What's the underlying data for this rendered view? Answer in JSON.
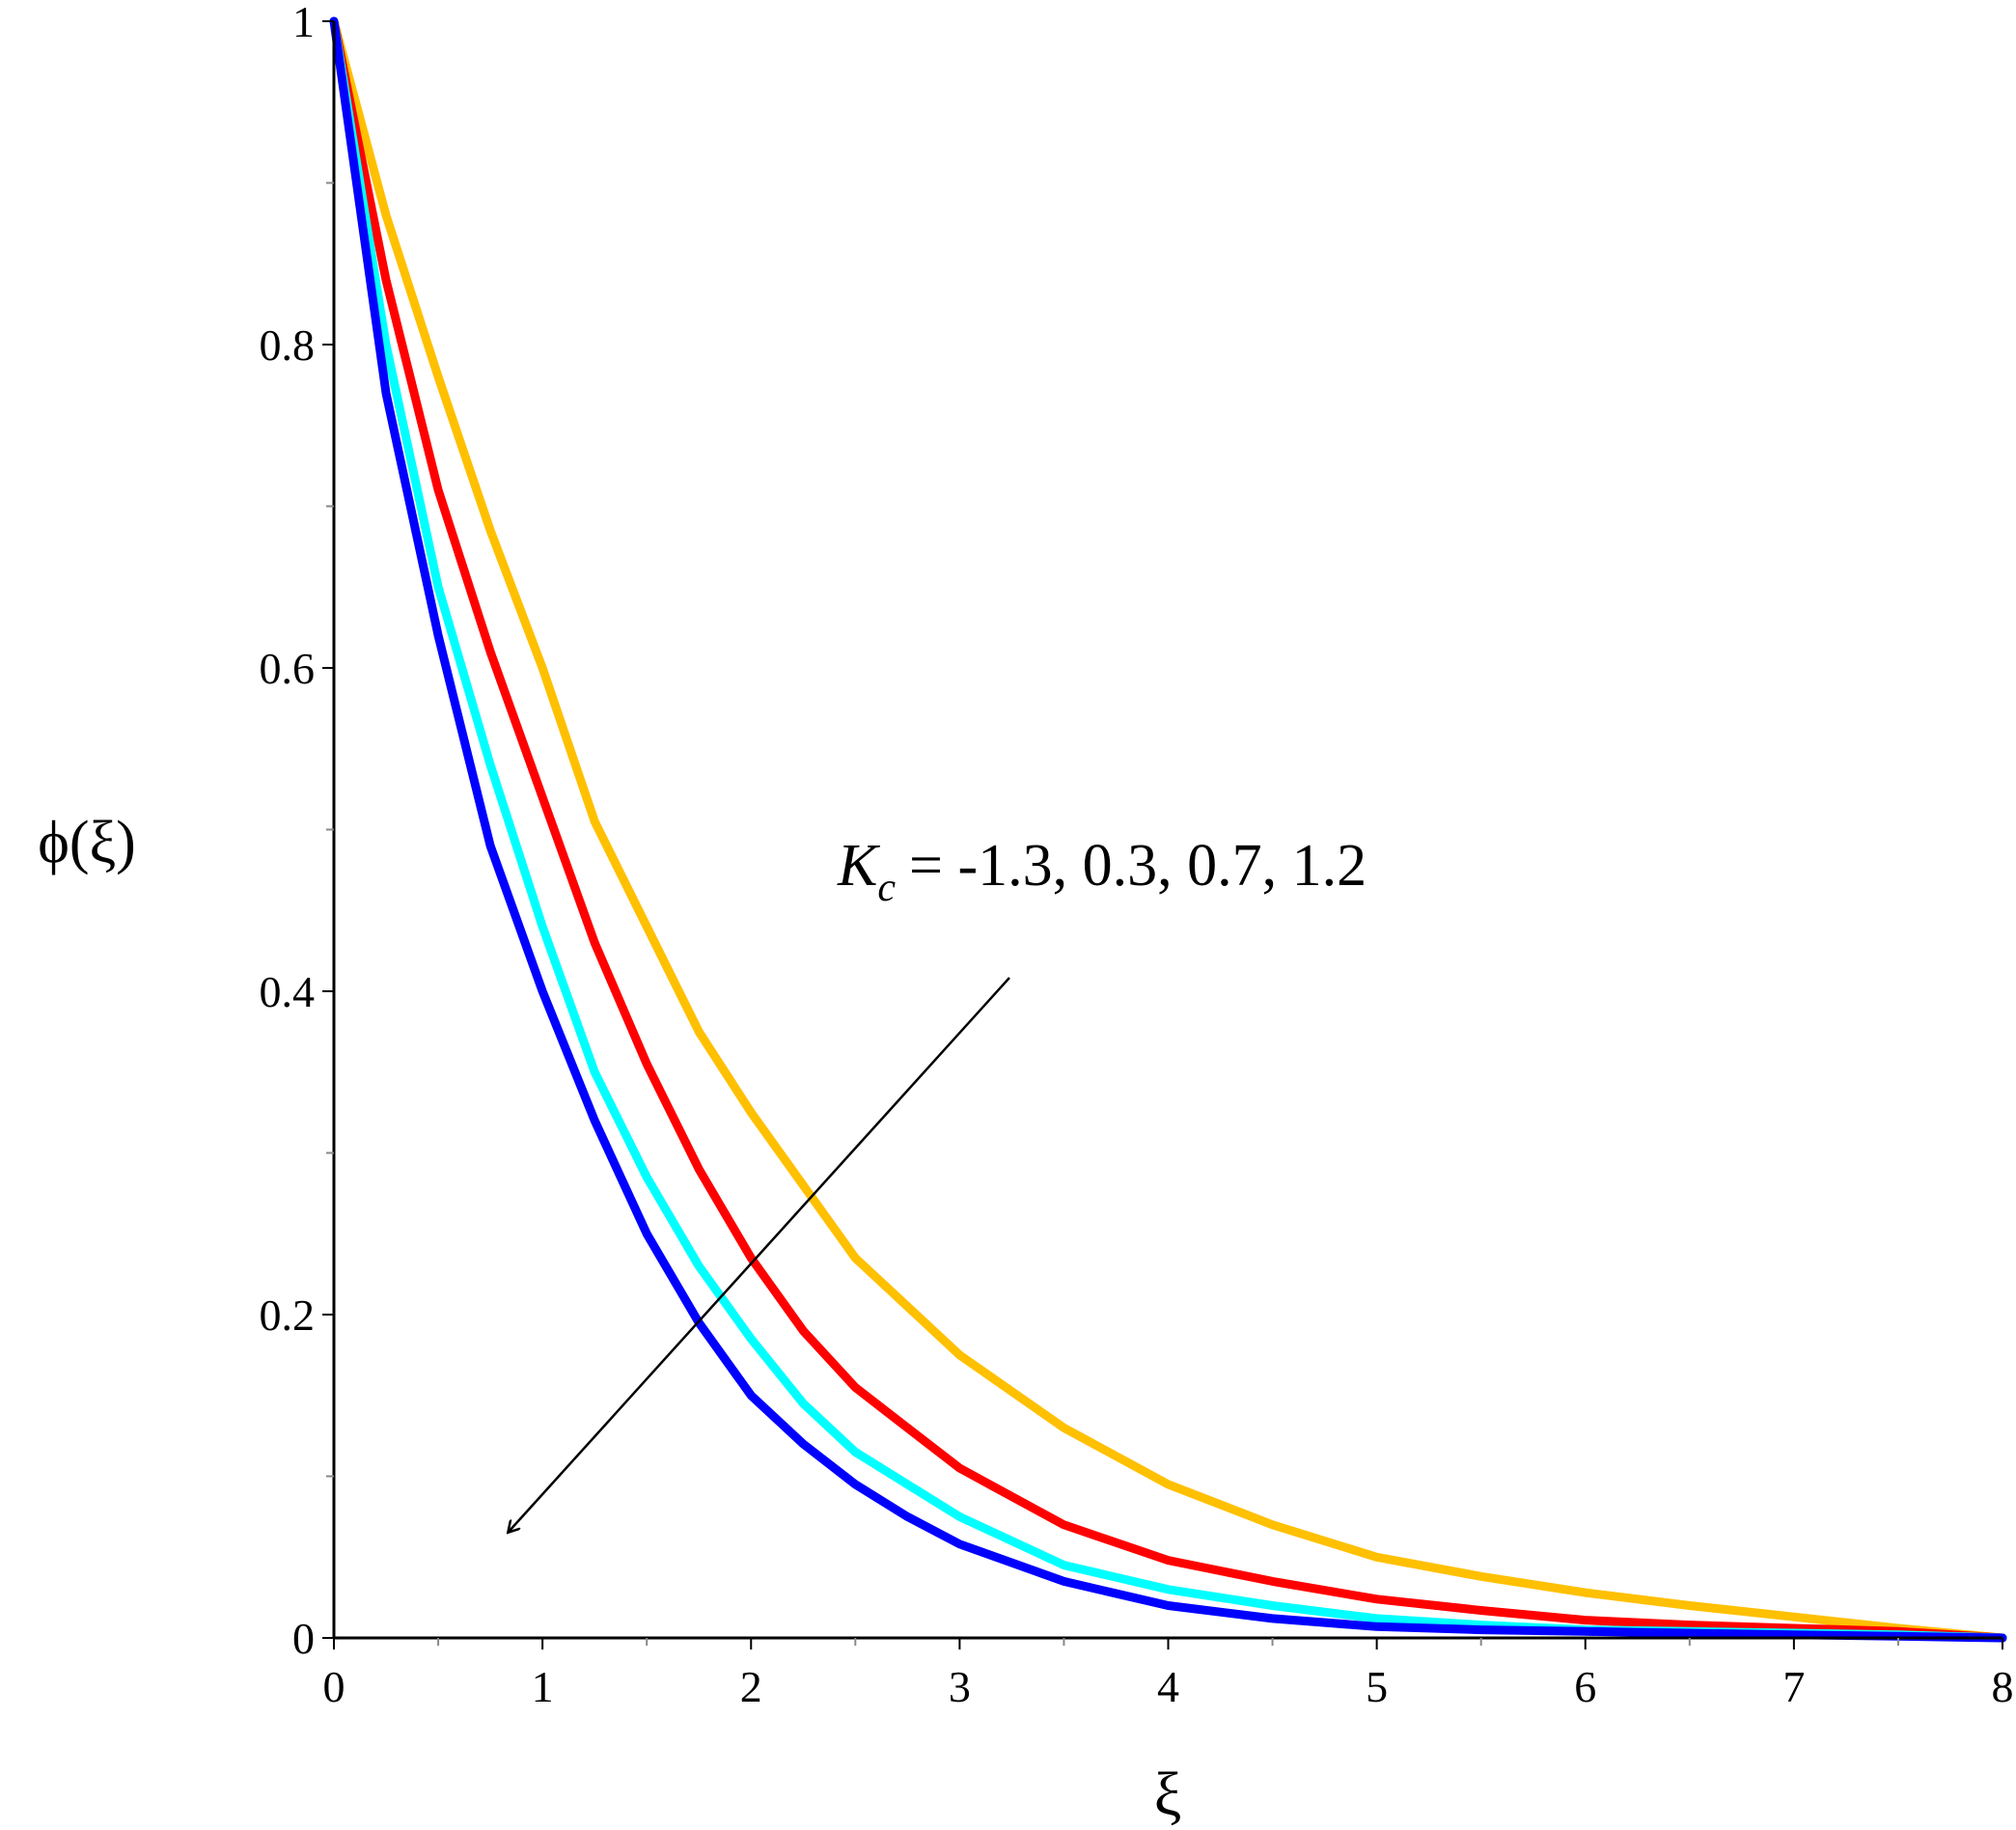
{
  "chart_data": {
    "type": "line",
    "title": "",
    "xlabel": "ξ",
    "ylabel": "ϕ(ξ)",
    "xlim": [
      0,
      8
    ],
    "ylim": [
      0,
      1
    ],
    "x_ticks": [
      "0",
      "1",
      "2",
      "3",
      "4",
      "5",
      "6",
      "7",
      "8"
    ],
    "y_ticks": [
      "0",
      "0.2",
      "0.4",
      "0.6",
      "0.8",
      "1"
    ],
    "grid": false,
    "legend": "none",
    "annotation": {
      "symbol": "K",
      "subscript": "c",
      "text": "= -1.3, 0.3, 0.7, 1.2",
      "arrow_direction": "decreasing K_c toward lower curves"
    },
    "series": [
      {
        "color": "#FFC000",
        "x": [
          0,
          0.25,
          0.5,
          0.75,
          1,
          1.25,
          1.5,
          1.75,
          2,
          2.25,
          2.5,
          2.75,
          3,
          3.5,
          4,
          4.5,
          5,
          5.5,
          6,
          6.5,
          7,
          7.5,
          8
        ],
        "y": [
          1,
          0.88,
          0.78,
          0.685,
          0.6,
          0.505,
          0.44,
          0.375,
          0.325,
          0.28,
          0.235,
          0.205,
          0.175,
          0.13,
          0.095,
          0.07,
          0.05,
          0.038,
          0.028,
          0.02,
          0.013,
          0.006,
          0
        ]
      },
      {
        "color": "#FF0000",
        "x": [
          0,
          0.25,
          0.5,
          0.75,
          1,
          1.25,
          1.5,
          1.75,
          2,
          2.25,
          2.5,
          2.75,
          3,
          3.5,
          4,
          4.5,
          5,
          5.5,
          6,
          6.5,
          7,
          7.5,
          8
        ],
        "y": [
          1,
          0.84,
          0.71,
          0.61,
          0.52,
          0.43,
          0.355,
          0.29,
          0.235,
          0.19,
          0.155,
          0.13,
          0.105,
          0.07,
          0.048,
          0.035,
          0.024,
          0.017,
          0.011,
          0.008,
          0.006,
          0.004,
          0
        ]
      },
      {
        "color": "#00FFFF",
        "x": [
          0,
          0.25,
          0.5,
          0.75,
          1,
          1.25,
          1.5,
          1.75,
          2,
          2.25,
          2.5,
          2.75,
          3,
          3.5,
          4,
          4.5,
          5,
          5.5,
          6,
          6.5,
          7,
          7.5,
          8
        ],
        "y": [
          1,
          0.8,
          0.65,
          0.54,
          0.44,
          0.35,
          0.285,
          0.23,
          0.185,
          0.145,
          0.115,
          0.095,
          0.075,
          0.045,
          0.03,
          0.02,
          0.012,
          0.008,
          0.005,
          0.004,
          0.003,
          0.002,
          0
        ]
      },
      {
        "color": "#0000FF",
        "x": [
          0,
          0.25,
          0.5,
          0.75,
          1,
          1.25,
          1.5,
          1.75,
          2,
          2.25,
          2.5,
          2.75,
          3,
          3.5,
          4,
          4.5,
          5,
          5.5,
          6,
          6.5,
          7,
          7.5,
          8
        ],
        "y": [
          1,
          0.77,
          0.62,
          0.49,
          0.4,
          0.32,
          0.25,
          0.195,
          0.15,
          0.12,
          0.095,
          0.075,
          0.058,
          0.035,
          0.02,
          0.012,
          0.007,
          0.005,
          0.004,
          0.003,
          0.002,
          0.001,
          0
        ]
      }
    ]
  }
}
